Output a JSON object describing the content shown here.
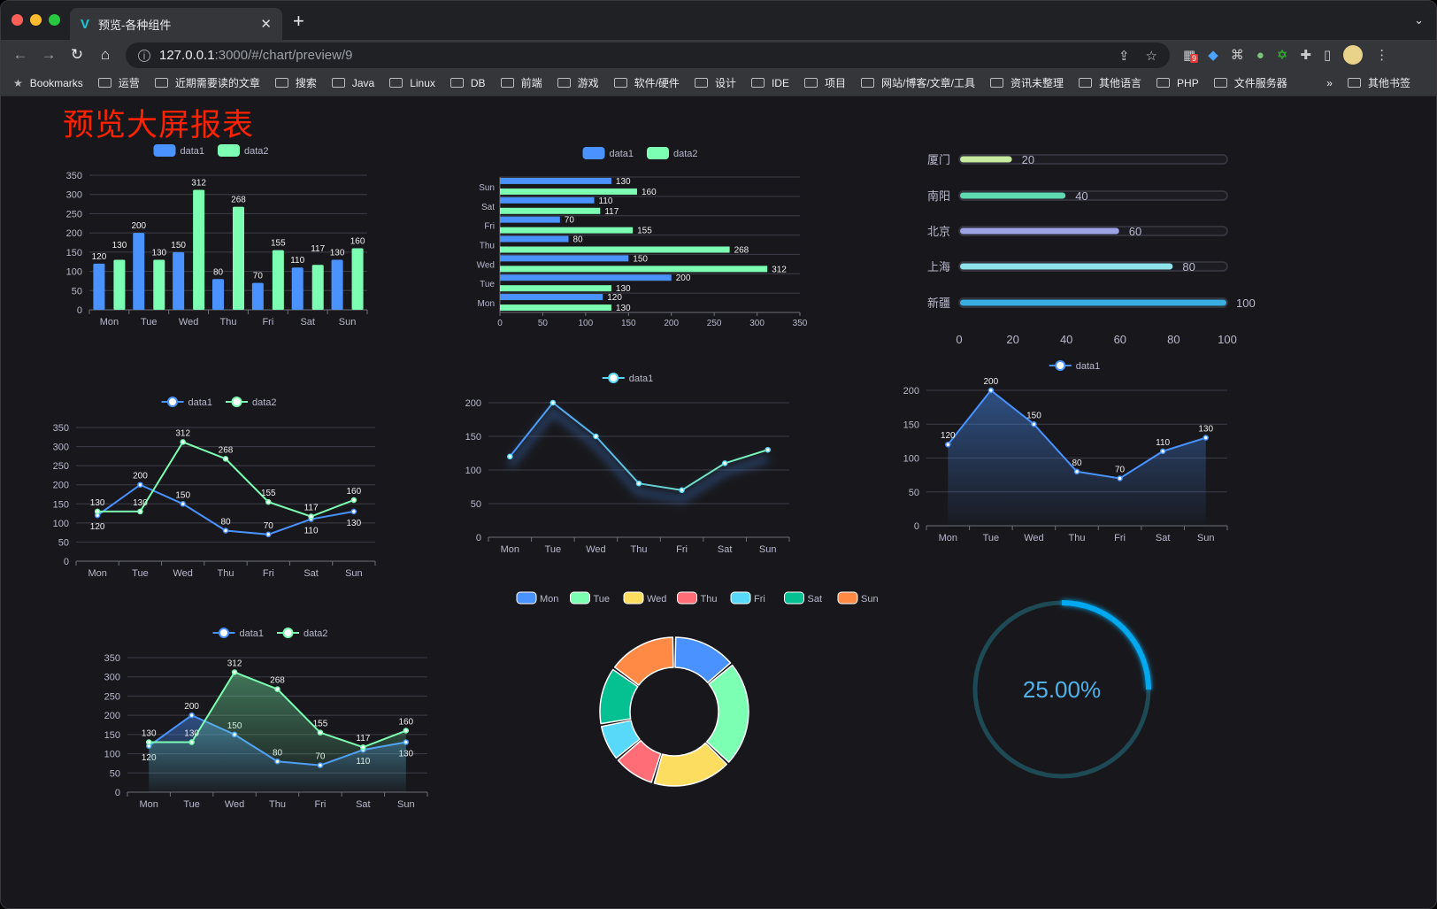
{
  "browser": {
    "tab_title": "预览-各种组件",
    "url_host": "127.0.0.1",
    "url_path": ":3000/#/chart/preview/9",
    "bookmarks_label": "Bookmarks",
    "bookmarks": [
      "运营",
      "近期需要读的文章",
      "搜索",
      "Java",
      "Linux",
      "DB",
      "前端",
      "游戏",
      "软件/硬件",
      "设计",
      "IDE",
      "项目",
      "网站/博客/文章/工具",
      "资讯未整理",
      "其他语言",
      "PHP",
      "文件服务器"
    ],
    "overflow": "»",
    "other_bookmarks": "其他书签",
    "extension_badge": "9"
  },
  "page": {
    "title": "预览大屏报表",
    "title_color": "#ff2200",
    "background": "#18181c"
  },
  "chart_data": [
    {
      "type": "bar",
      "categories": [
        "Mon",
        "Tue",
        "Wed",
        "Thu",
        "Fri",
        "Sat",
        "Sun"
      ],
      "series": [
        {
          "name": "data1",
          "values": [
            120,
            200,
            150,
            80,
            70,
            110,
            130
          ],
          "color": "#4992ff"
        },
        {
          "name": "data2",
          "values": [
            130,
            130,
            312,
            268,
            155,
            117,
            160
          ],
          "color": "#7cffb2"
        }
      ],
      "ylim": [
        0,
        350
      ],
      "yticks": [
        "0",
        "50",
        "100",
        "150",
        "200",
        "250",
        "300",
        "350"
      ],
      "legend": "top",
      "grid": true
    },
    {
      "type": "bar",
      "orientation": "horizontal",
      "categories": [
        "Mon",
        "Tue",
        "Wed",
        "Thu",
        "Fri",
        "Sat",
        "Sun"
      ],
      "series": [
        {
          "name": "data1",
          "values": [
            120,
            200,
            150,
            80,
            70,
            110,
            130
          ],
          "color": "#4992ff"
        },
        {
          "name": "data2",
          "values": [
            130,
            130,
            312,
            268,
            155,
            117,
            160
          ],
          "color": "#7cffb2"
        }
      ],
      "xlim": [
        0,
        350
      ],
      "xticks": [
        "0",
        "50",
        "100",
        "150",
        "200",
        "250",
        "300",
        "350"
      ],
      "legend": "top",
      "grid": true
    },
    {
      "type": "bar",
      "orientation": "horizontal",
      "style": "progress",
      "categories": [
        "厦门",
        "南阳",
        "北京",
        "上海",
        "新疆"
      ],
      "values": [
        20,
        40,
        60,
        80,
        100
      ],
      "colors": [
        "#c6eba0",
        "#5fd9b0",
        "#9ea2e6",
        "#8fe3ea",
        "#3aaee0"
      ],
      "xlim": [
        0,
        100
      ],
      "xticks": [
        "0",
        "20",
        "40",
        "60",
        "80",
        "100"
      ]
    },
    {
      "type": "line",
      "categories": [
        "Mon",
        "Tue",
        "Wed",
        "Thu",
        "Fri",
        "Sat",
        "Sun"
      ],
      "series": [
        {
          "name": "data1",
          "values": [
            120,
            200,
            150,
            80,
            70,
            110,
            130
          ],
          "color": "#4992ff"
        },
        {
          "name": "data2",
          "values": [
            130,
            130,
            312,
            268,
            155,
            117,
            160
          ],
          "color": "#7cffb2"
        }
      ],
      "ylim": [
        0,
        350
      ],
      "yticks": [
        "0",
        "50",
        "100",
        "150",
        "200",
        "250",
        "300",
        "350"
      ],
      "legend": "top",
      "grid": true
    },
    {
      "type": "line",
      "categories": [
        "Mon",
        "Tue",
        "Wed",
        "Thu",
        "Fri",
        "Sat",
        "Sun"
      ],
      "series": [
        {
          "name": "data1",
          "values": [
            120,
            200,
            150,
            80,
            70,
            110,
            130
          ],
          "color": "#58d9f9",
          "gradient_to": "#7cffb2"
        }
      ],
      "ylim": [
        0,
        200
      ],
      "yticks": [
        "0",
        "50",
        "100",
        "150",
        "200"
      ],
      "legend": "top",
      "grid": true,
      "shadow": true
    },
    {
      "type": "area",
      "categories": [
        "Mon",
        "Tue",
        "Wed",
        "Thu",
        "Fri",
        "Sat",
        "Sun"
      ],
      "series": [
        {
          "name": "data1",
          "values": [
            120,
            200,
            150,
            80,
            70,
            110,
            130
          ],
          "color": "#4992ff"
        }
      ],
      "ylim": [
        0,
        200
      ],
      "yticks": [
        "0",
        "50",
        "100",
        "150",
        "200"
      ],
      "legend": "top",
      "grid": true
    },
    {
      "type": "area",
      "categories": [
        "Mon",
        "Tue",
        "Wed",
        "Thu",
        "Fri",
        "Sat",
        "Sun"
      ],
      "series": [
        {
          "name": "data1",
          "values": [
            120,
            200,
            150,
            80,
            70,
            110,
            130
          ],
          "color": "#4992ff"
        },
        {
          "name": "data2",
          "values": [
            130,
            130,
            312,
            268,
            155,
            117,
            160
          ],
          "color": "#7cffb2"
        }
      ],
      "ylim": [
        0,
        350
      ],
      "yticks": [
        "0",
        "50",
        "100",
        "150",
        "200",
        "250",
        "300",
        "350"
      ],
      "legend": "top",
      "grid": true
    },
    {
      "type": "pie",
      "style": "donut",
      "categories": [
        "Mon",
        "Tue",
        "Wed",
        "Thu",
        "Fri",
        "Sat",
        "Sun"
      ],
      "values": [
        120,
        200,
        150,
        80,
        70,
        110,
        130
      ],
      "colors": [
        "#4992ff",
        "#7cffb2",
        "#fddd60",
        "#ff6e76",
        "#58d9f9",
        "#05c091",
        "#ff8a45"
      ],
      "legend": "top"
    },
    {
      "type": "gauge",
      "value": 25,
      "label": "25.00%",
      "color": "#00a8f0",
      "track_color": "#1e4a55"
    }
  ]
}
